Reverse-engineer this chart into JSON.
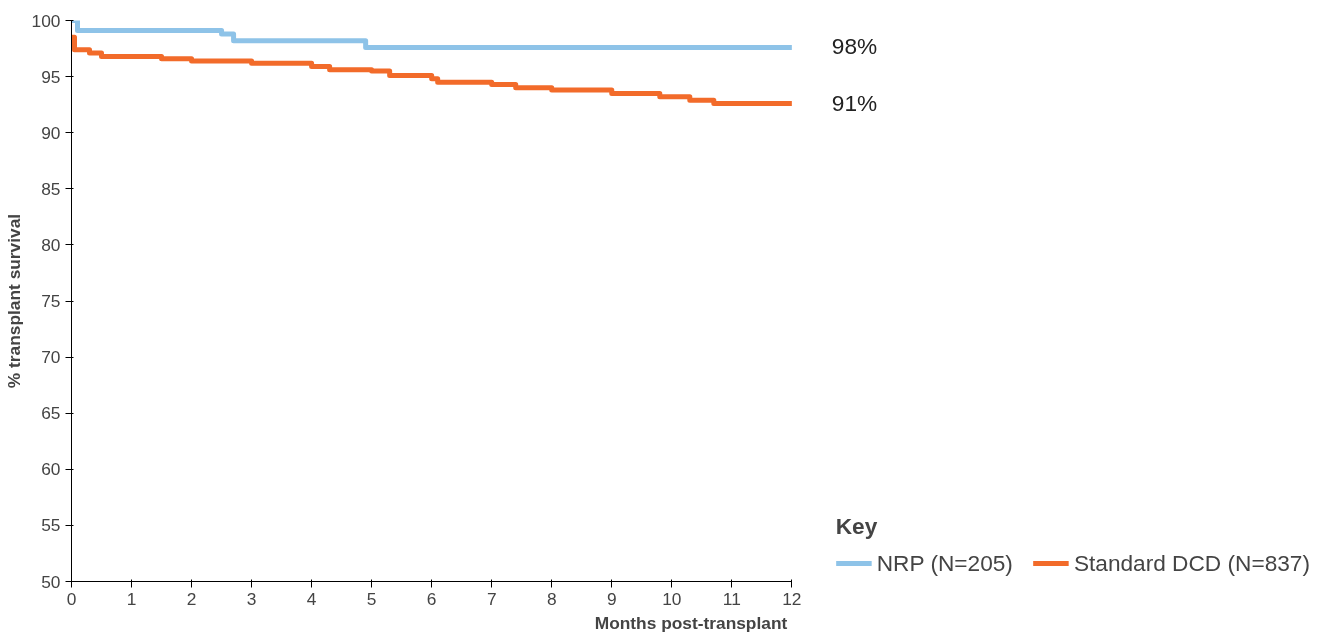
{
  "chart_data": {
    "type": "step",
    "xlabel": "Months post-transplant",
    "ylabel": "% transplant survival",
    "legend_title": "Key",
    "legend": "bottom right",
    "grid": false,
    "marker": "none",
    "line_style": "solid",
    "xlim": [
      0,
      12
    ],
    "ylim": [
      50,
      100
    ],
    "xticks": [
      0,
      1,
      2,
      3,
      4,
      5,
      6,
      7,
      8,
      9,
      10,
      11,
      12
    ],
    "yticks": [
      50,
      55,
      60,
      65,
      70,
      75,
      80,
      85,
      90,
      95,
      100
    ],
    "series": [
      {
        "name": "NRP (N=205)",
        "color": "#8ec3e8",
        "x": [
          0,
          0.1,
          2.5,
          2.7,
          4.9,
          12
        ],
        "values": [
          100,
          99.1,
          98.8,
          98.2,
          97.6,
          97.6
        ]
      },
      {
        "name": "Standard DCD (N=837)",
        "color": "#f26b2a",
        "x": [
          0,
          0.05,
          0.3,
          0.5,
          1.5,
          2,
          3,
          4,
          4.3,
          5,
          5.3,
          6,
          6.1,
          7,
          7.4,
          8,
          9,
          9.8,
          10.3,
          10.7,
          12
        ],
        "values": [
          98.5,
          97.4,
          97.1,
          96.8,
          96.6,
          96.4,
          96.2,
          95.9,
          95.6,
          95.5,
          95.1,
          94.8,
          94.5,
          94.3,
          94,
          93.8,
          93.5,
          93.2,
          92.9,
          92.6,
          92.6
        ]
      }
    ],
    "annotations": [
      {
        "text": "98%",
        "x": 12,
        "y": 97.6
      },
      {
        "text": "91%",
        "x": 12,
        "y": 92.6
      }
    ]
  }
}
